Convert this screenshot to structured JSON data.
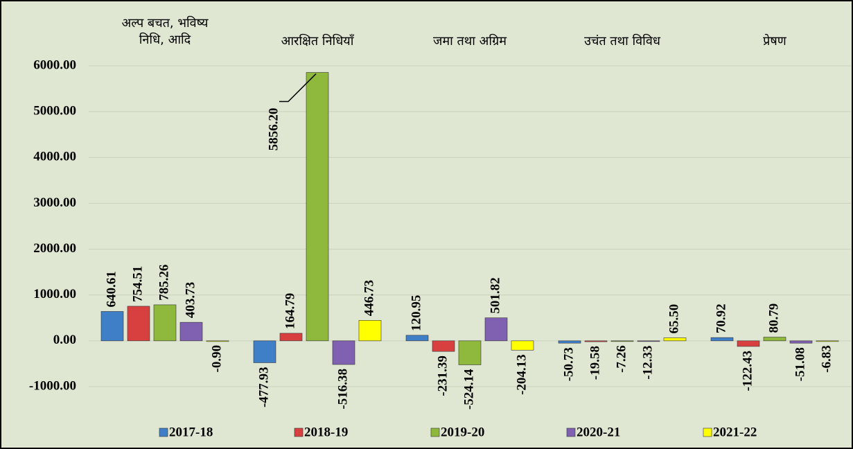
{
  "chart_data": {
    "type": "bar",
    "categories": [
      "अल्प बचत, भविष्य निधि, आदि",
      "आरक्षित निधियाँ",
      "जमा तथा अग्रिम",
      "उचंत तथा विविध",
      "प्रेषण"
    ],
    "series": [
      {
        "name": "2017-18",
        "color": "#3f7fc8",
        "values": [
          640.61,
          -477.93,
          120.95,
          -50.73,
          70.92
        ],
        "value_labels": [
          "640.61",
          "-477.93",
          "120.95",
          "-50.73",
          "70.92"
        ]
      },
      {
        "name": "2018-19",
        "color": "#d84040",
        "values": [
          754.51,
          164.79,
          -231.39,
          -19.58,
          -122.43
        ],
        "value_labels": [
          "754.51",
          "164.79",
          "-231.39",
          "-19.58",
          "-122.43"
        ]
      },
      {
        "name": "2019-20",
        "color": "#8fb93c",
        "values": [
          785.26,
          5856.2,
          -524.14,
          -7.26,
          80.79
        ],
        "value_labels": [
          "785.26",
          "5856.20",
          "-524.14",
          "-7.26",
          "80.79"
        ]
      },
      {
        "name": "2020-21",
        "color": "#8060b0",
        "values": [
          403.73,
          -516.38,
          501.82,
          -12.33,
          -51.08
        ],
        "value_labels": [
          "403.73",
          "-516.38",
          "501.82",
          "-12.33",
          "-51.08"
        ]
      },
      {
        "name": "2021-22",
        "color": "#ffff00",
        "values": [
          -0.9,
          446.73,
          -204.13,
          65.5,
          -6.83
        ],
        "value_labels": [
          "-0.90",
          "446.73",
          "-204.13",
          "65.50",
          "-6.83"
        ]
      }
    ],
    "ylim": [
      -1000,
      6000
    ],
    "yticks": [
      {
        "value": -1000,
        "label": "-1000.00"
      },
      {
        "value": 0,
        "label": "0.00"
      },
      {
        "value": 1000,
        "label": "1000.00"
      },
      {
        "value": 2000,
        "label": "2000.00"
      },
      {
        "value": 3000,
        "label": "3000.00"
      },
      {
        "value": 4000,
        "label": "4000.00"
      },
      {
        "value": 5000,
        "label": "5000.00"
      },
      {
        "value": 6000,
        "label": "6000.00"
      }
    ],
    "grid": true,
    "legend": "bottom"
  }
}
